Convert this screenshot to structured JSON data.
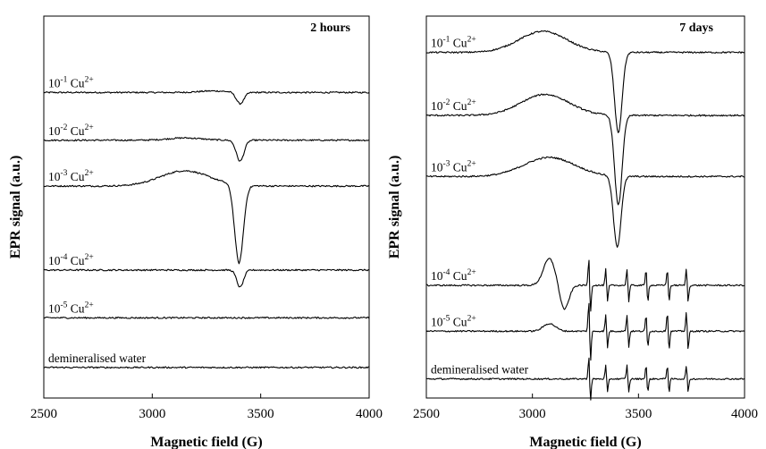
{
  "chart_data": [
    {
      "type": "line",
      "title": "2 hours",
      "xlabel": "Magnetic field (G)",
      "ylabel": "EPR signal (a.u.)",
      "xlim": [
        2500,
        4000
      ],
      "x_ticks": [
        "2500",
        "3000",
        "3500",
        "4000"
      ],
      "series": [
        {
          "label": {
            "base": "10",
            "exp": "-1",
            "ion": " Cu",
            "charge": "2+"
          },
          "baseline": 0.8,
          "features": [
            {
              "x": 3280,
              "w": 90,
              "a": 0.004,
              "k": "d"
            },
            {
              "x": 3405,
              "w": 25,
              "a": -0.03,
              "k": "g"
            }
          ]
        },
        {
          "label": {
            "base": "10",
            "exp": "-2",
            "ion": " Cu",
            "charge": "2+"
          },
          "baseline": 0.675,
          "features": [
            {
              "x": 3150,
              "w": 110,
              "a": 0.006,
              "k": "d"
            },
            {
              "x": 3405,
              "w": 25,
              "a": -0.055,
              "k": "g"
            }
          ]
        },
        {
          "label": {
            "base": "10",
            "exp": "-3",
            "ion": " Cu",
            "charge": "2+"
          },
          "baseline": 0.555,
          "features": [
            {
              "x": 3150,
              "w": 160,
              "a": 0.04,
              "k": "d"
            },
            {
              "x": 3400,
              "w": 28,
              "a": -0.205,
              "k": "g"
            }
          ]
        },
        {
          "label": {
            "base": "10",
            "exp": "-4",
            "ion": " Cu",
            "charge": "2+"
          },
          "baseline": 0.335,
          "features": [
            {
              "x": 3405,
              "w": 22,
              "a": -0.045,
              "k": "g"
            }
          ]
        },
        {
          "label": {
            "base": "10",
            "exp": "-5",
            "ion": " Cu",
            "charge": "2+"
          },
          "baseline": 0.21,
          "features": []
        },
        {
          "label": {
            "base": "demineralised water",
            "exp": "",
            "ion": "",
            "charge": ""
          },
          "baseline": 0.08,
          "features": []
        }
      ]
    },
    {
      "type": "line",
      "title": "7 days",
      "xlabel": "Magnetic field (G)",
      "ylabel": "EPR signal (a.u.)",
      "xlim": [
        2500,
        4000
      ],
      "x_ticks": [
        "2500",
        "3000",
        "3500",
        "4000"
      ],
      "series": [
        {
          "label": {
            "base": "10",
            "exp": "-1",
            "ion": " Cu",
            "charge": "2+"
          },
          "baseline": 0.905,
          "features": [
            {
              "x": 3050,
              "w": 160,
              "a": 0.055,
              "k": "d"
            },
            {
              "x": 3405,
              "w": 25,
              "a": -0.21,
              "k": "g"
            }
          ]
        },
        {
          "label": {
            "base": "10",
            "exp": "-2",
            "ion": " Cu",
            "charge": "2+"
          },
          "baseline": 0.74,
          "features": [
            {
              "x": 3060,
              "w": 160,
              "a": 0.055,
              "k": "d"
            },
            {
              "x": 3405,
              "w": 25,
              "a": -0.235,
              "k": "g"
            }
          ]
        },
        {
          "label": {
            "base": "10",
            "exp": "-3",
            "ion": " Cu",
            "charge": "2+"
          },
          "baseline": 0.58,
          "features": [
            {
              "x": 3080,
              "w": 170,
              "a": 0.05,
              "k": "d"
            },
            {
              "x": 3400,
              "w": 25,
              "a": -0.185,
              "k": "g"
            }
          ]
        },
        {
          "label": {
            "base": "10",
            "exp": "-4",
            "ion": " Cu",
            "charge": "2+"
          },
          "baseline": 0.295,
          "features": [
            {
              "x": 3080,
              "w": 40,
              "a": 0.07,
              "k": "d"
            },
            {
              "x": 3150,
              "w": 30,
              "a": -0.065,
              "k": "g"
            },
            {
              "x": 3270,
              "w": 6,
              "a": 0.05,
              "k": "h"
            },
            {
              "x": 3350,
              "w": 6,
              "a": 0.03,
              "k": "h"
            },
            {
              "x": 3450,
              "w": 6,
              "a": 0.03,
              "k": "h"
            },
            {
              "x": 3540,
              "w": 6,
              "a": 0.03,
              "k": "h"
            },
            {
              "x": 3640,
              "w": 6,
              "a": 0.03,
              "k": "h"
            },
            {
              "x": 3730,
              "w": 6,
              "a": 0.03,
              "k": "h"
            }
          ]
        },
        {
          "label": {
            "base": "10",
            "exp": "-5",
            "ion": " Cu",
            "charge": "2+"
          },
          "baseline": 0.175,
          "features": [
            {
              "x": 3080,
              "w": 40,
              "a": 0.02,
              "k": "d"
            },
            {
              "x": 3270,
              "w": 6,
              "a": 0.055,
              "k": "h"
            },
            {
              "x": 3350,
              "w": 6,
              "a": 0.03,
              "k": "h"
            },
            {
              "x": 3450,
              "w": 6,
              "a": 0.03,
              "k": "h"
            },
            {
              "x": 3540,
              "w": 6,
              "a": 0.03,
              "k": "h"
            },
            {
              "x": 3640,
              "w": 6,
              "a": 0.035,
              "k": "h"
            },
            {
              "x": 3730,
              "w": 6,
              "a": 0.035,
              "k": "h"
            }
          ]
        },
        {
          "label": {
            "base": "demineralised water",
            "exp": "",
            "ion": "",
            "charge": ""
          },
          "baseline": 0.05,
          "features": [
            {
              "x": 3270,
              "w": 6,
              "a": 0.04,
              "k": "h"
            },
            {
              "x": 3350,
              "w": 6,
              "a": 0.025,
              "k": "h"
            },
            {
              "x": 3450,
              "w": 6,
              "a": 0.025,
              "k": "h"
            },
            {
              "x": 3540,
              "w": 6,
              "a": 0.025,
              "k": "h"
            },
            {
              "x": 3640,
              "w": 6,
              "a": 0.025,
              "k": "h"
            },
            {
              "x": 3730,
              "w": 6,
              "a": 0.025,
              "k": "h"
            }
          ]
        }
      ]
    }
  ]
}
